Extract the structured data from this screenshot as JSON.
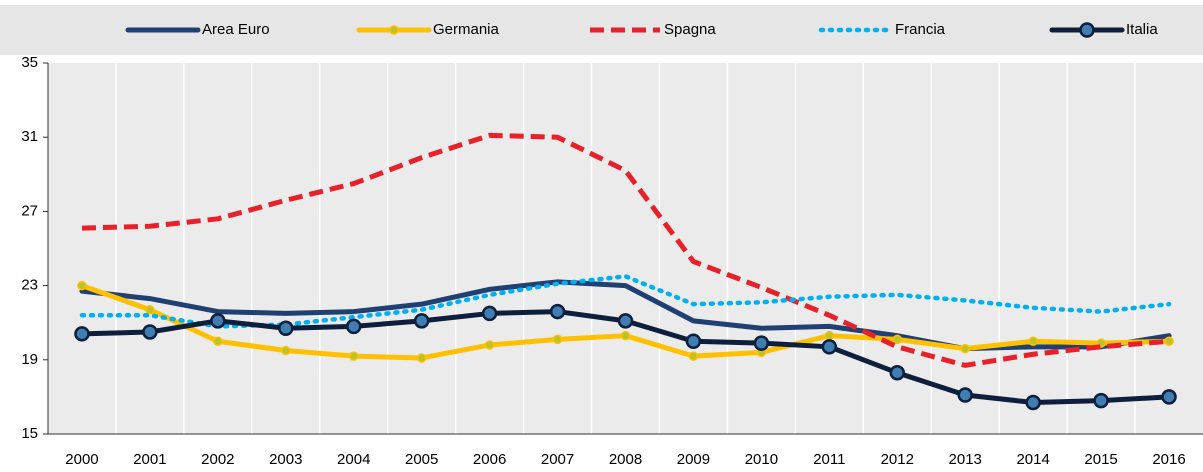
{
  "chart_data": {
    "type": "line",
    "categories": [
      "2000",
      "2001",
      "2002",
      "2003",
      "2004",
      "2005",
      "2006",
      "2007",
      "2008",
      "2009",
      "2010",
      "2011",
      "2012",
      "2013",
      "2014",
      "2015",
      "2016"
    ],
    "ylim": [
      15,
      35
    ],
    "yticks": [
      15,
      19,
      23,
      27,
      31,
      35
    ],
    "grid": "x",
    "series": [
      {
        "name": "Area Euro",
        "color": "#203f72",
        "style": "solid",
        "marker": false,
        "values": [
          22.7,
          22.3,
          21.6,
          21.5,
          21.6,
          22.0,
          22.8,
          23.2,
          23.0,
          21.1,
          20.7,
          20.8,
          20.3,
          19.6,
          19.7,
          19.7,
          20.3
        ]
      },
      {
        "name": "Germania",
        "color": "#ffc000",
        "style": "solid",
        "marker": true,
        "values": [
          23.0,
          21.7,
          20.0,
          19.5,
          19.2,
          19.1,
          19.8,
          20.1,
          20.3,
          19.2,
          19.4,
          20.3,
          20.1,
          19.6,
          20.0,
          19.9,
          20.0
        ]
      },
      {
        "name": "Spagna",
        "color": "#e8202a",
        "style": "dashed",
        "marker": false,
        "values": [
          26.1,
          26.2,
          26.6,
          27.6,
          28.5,
          29.9,
          31.1,
          31.0,
          29.2,
          24.3,
          22.9,
          21.4,
          19.7,
          18.7,
          19.3,
          19.7,
          20.0
        ]
      },
      {
        "name": "Francia",
        "color": "#00b0f0",
        "style": "dotted",
        "marker": false,
        "values": [
          21.4,
          21.4,
          20.8,
          20.9,
          21.3,
          21.7,
          22.5,
          23.1,
          23.5,
          22.0,
          22.1,
          22.4,
          22.5,
          22.2,
          21.8,
          21.6,
          22.0
        ]
      },
      {
        "name": "Italia",
        "color": "#0d1f3c",
        "style": "solid",
        "marker": true,
        "values": [
          20.4,
          20.5,
          21.1,
          20.7,
          20.8,
          21.1,
          21.5,
          21.6,
          21.1,
          20.0,
          19.9,
          19.7,
          18.3,
          17.1,
          16.7,
          16.8,
          17.0
        ]
      }
    ]
  }
}
